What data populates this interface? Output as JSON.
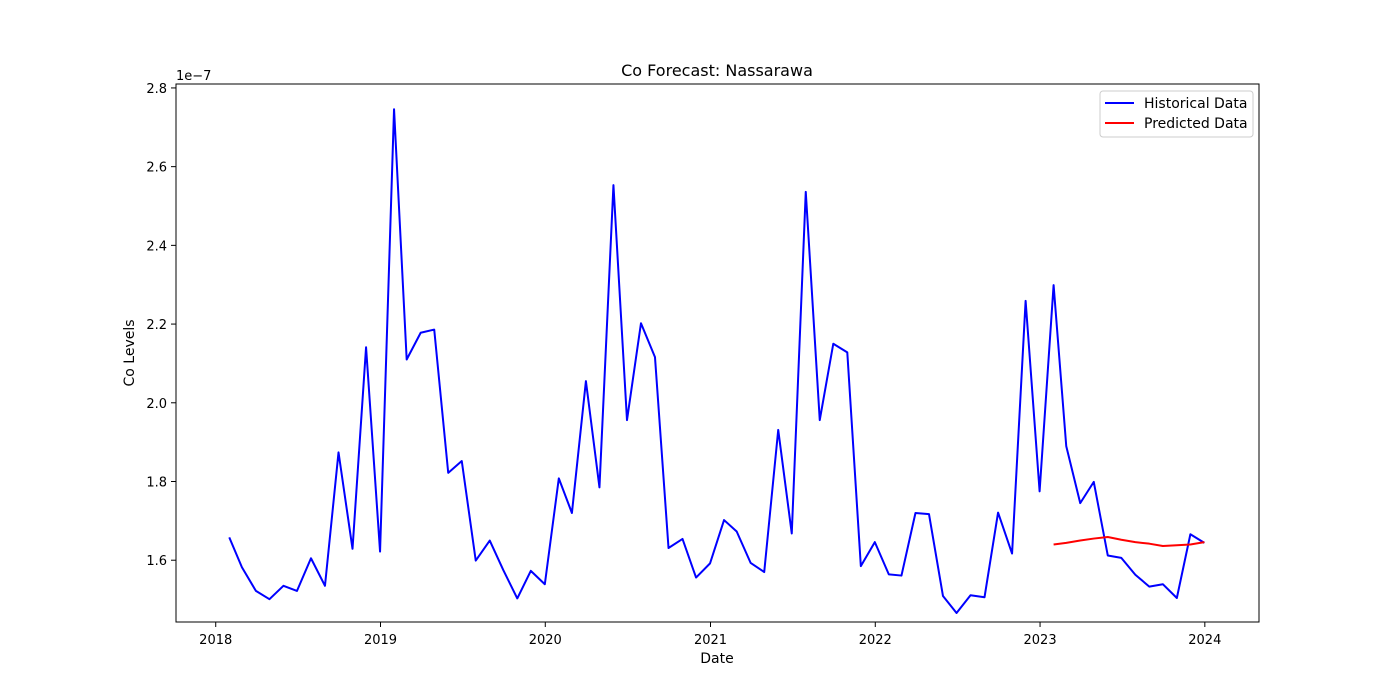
{
  "chart_data": {
    "type": "line",
    "title": "Co Forecast: Nassarawa",
    "xlabel": "Date",
    "ylabel": "Co Levels",
    "y_offset_label": "1e−7",
    "x_ticks": [
      "2018",
      "2019",
      "2020",
      "2021",
      "2022",
      "2023",
      "2024"
    ],
    "y_ticks": [
      "1.6",
      "1.8",
      "2.0",
      "2.2",
      "2.4",
      "2.6",
      "2.8"
    ],
    "xlim": [
      "2017-10-05",
      "2024-04-30"
    ],
    "ylim": [
      1.443e-07,
      2.81e-07
    ],
    "grid": false,
    "legend_position": "upper right",
    "series": [
      {
        "name": "Historical Data",
        "color": "#0000ff",
        "x": [
          "2018-01-31",
          "2018-02-28",
          "2018-03-31",
          "2018-04-30",
          "2018-05-31",
          "2018-06-30",
          "2018-07-31",
          "2018-08-31",
          "2018-09-30",
          "2018-10-31",
          "2018-11-30",
          "2018-12-31",
          "2019-01-31",
          "2019-02-28",
          "2019-03-31",
          "2019-04-30",
          "2019-05-31",
          "2019-06-30",
          "2019-07-31",
          "2019-08-31",
          "2019-09-30",
          "2019-10-31",
          "2019-11-30",
          "2019-12-31",
          "2020-01-31",
          "2020-02-29",
          "2020-03-31",
          "2020-04-30",
          "2020-05-31",
          "2020-06-30",
          "2020-07-31",
          "2020-08-31",
          "2020-09-30",
          "2020-10-31",
          "2020-11-30",
          "2020-12-31",
          "2021-01-31",
          "2021-02-28",
          "2021-03-31",
          "2021-04-30",
          "2021-05-31",
          "2021-06-30",
          "2021-07-31",
          "2021-08-31",
          "2021-09-30",
          "2021-10-31",
          "2021-11-30",
          "2021-12-31",
          "2022-01-31",
          "2022-02-28",
          "2022-03-31",
          "2022-04-30",
          "2022-05-31",
          "2022-06-30",
          "2022-07-31",
          "2022-08-31",
          "2022-09-30",
          "2022-10-31",
          "2022-11-30",
          "2022-12-31",
          "2023-01-31",
          "2023-02-28",
          "2023-03-31",
          "2023-04-30",
          "2023-05-31",
          "2023-06-30",
          "2023-07-31",
          "2023-08-31",
          "2023-09-30",
          "2023-10-31",
          "2023-11-30",
          "2023-12-31"
        ],
        "values": [
          1.658e-07,
          1.582e-07,
          1.522e-07,
          1.501e-07,
          1.535e-07,
          1.522e-07,
          1.605e-07,
          1.535e-07,
          1.874e-07,
          1.629e-07,
          2.141e-07,
          1.622e-07,
          2.746e-07,
          2.11e-07,
          2.178e-07,
          2.186e-07,
          1.822e-07,
          1.852e-07,
          1.599e-07,
          1.65e-07,
          1.575e-07,
          1.503e-07,
          1.573e-07,
          1.539e-07,
          1.808e-07,
          1.72e-07,
          2.055e-07,
          1.785e-07,
          2.553e-07,
          1.956e-07,
          2.202e-07,
          2.116e-07,
          1.631e-07,
          1.654e-07,
          1.556e-07,
          1.592e-07,
          1.702e-07,
          1.673e-07,
          1.593e-07,
          1.57e-07,
          1.931e-07,
          1.668e-07,
          2.536e-07,
          1.956e-07,
          2.15e-07,
          2.128e-07,
          1.585e-07,
          1.646e-07,
          1.564e-07,
          1.561e-07,
          1.72e-07,
          1.717e-07,
          1.509e-07,
          1.466e-07,
          1.511e-07,
          1.506e-07,
          1.721e-07,
          1.617e-07,
          2.259e-07,
          1.775e-07,
          2.299e-07,
          1.89e-07,
          1.745e-07,
          1.799e-07,
          1.612e-07,
          1.606e-07,
          1.563e-07,
          1.533e-07,
          1.539e-07,
          1.504e-07,
          1.666e-07,
          1.644e-07
        ]
      },
      {
        "name": "Predicted Data",
        "color": "#ff0000",
        "x": [
          "2023-01-31",
          "2023-02-28",
          "2023-03-31",
          "2023-04-30",
          "2023-05-31",
          "2023-06-30",
          "2023-07-31",
          "2023-08-31",
          "2023-09-30",
          "2023-10-31",
          "2023-11-30",
          "2023-12-31"
        ],
        "values": [
          1.64e-07,
          1.644e-07,
          1.65e-07,
          1.655e-07,
          1.659e-07,
          1.652e-07,
          1.646e-07,
          1.642e-07,
          1.636e-07,
          1.638e-07,
          1.64e-07,
          1.646e-07
        ]
      }
    ]
  }
}
